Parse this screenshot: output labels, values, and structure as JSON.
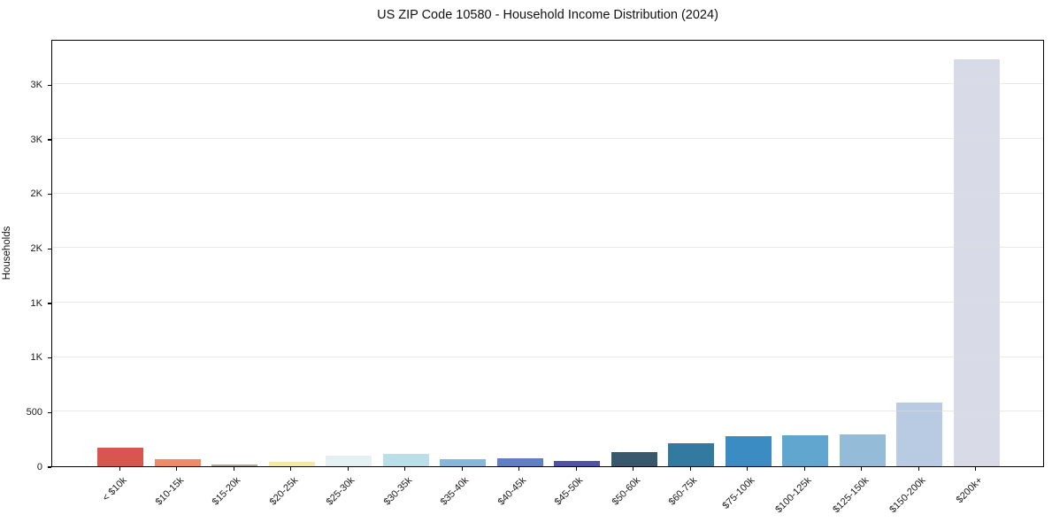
{
  "chart_data": {
    "type": "bar",
    "title": "US ZIP Code 10580 - Household Income Distribution (2024)",
    "xlabel": "",
    "ylabel": "Households",
    "categories": [
      "< $10k",
      "$10-15k",
      "$15-20k",
      "$20-25k",
      "$25-30k",
      "$30-35k",
      "$35-40k",
      "$40-45k",
      "$45-50k",
      "$50-60k",
      "$60-75k",
      "$75-100k",
      "$100-125k",
      "$125-150k",
      "$150-200k",
      "$200k+"
    ],
    "values": [
      173,
      67,
      14,
      40,
      95,
      117,
      63,
      75,
      50,
      132,
      215,
      272,
      284,
      295,
      580,
      3729
    ],
    "bar_colors": [
      "#d8564f",
      "#f08a62",
      "#b3a492",
      "#f6e8a8",
      "#e4f0f2",
      "#bbdfe8",
      "#85b8da",
      "#5f81c4",
      "#4f52a5",
      "#37586d",
      "#327a9f",
      "#3a8cc3",
      "#60a6ce",
      "#94bbd8",
      "#b8cbe3",
      "#d9dae7"
    ],
    "ylim": [
      0,
      3917
    ],
    "yticks": [
      {
        "value": 0,
        "label": "0"
      },
      {
        "value": 500,
        "label": "500"
      },
      {
        "value": 1000,
        "label": "1K"
      },
      {
        "value": 1500,
        "label": "1K"
      },
      {
        "value": 2000,
        "label": "2K"
      },
      {
        "value": 2500,
        "label": "2K"
      },
      {
        "value": 3000,
        "label": "3K"
      },
      {
        "value": 3500,
        "label": "3K"
      }
    ],
    "grid": "horizontal",
    "legend": "none",
    "background": "#ffffff",
    "spine_color": "#000000",
    "gridline_color": "#dcdcde"
  }
}
